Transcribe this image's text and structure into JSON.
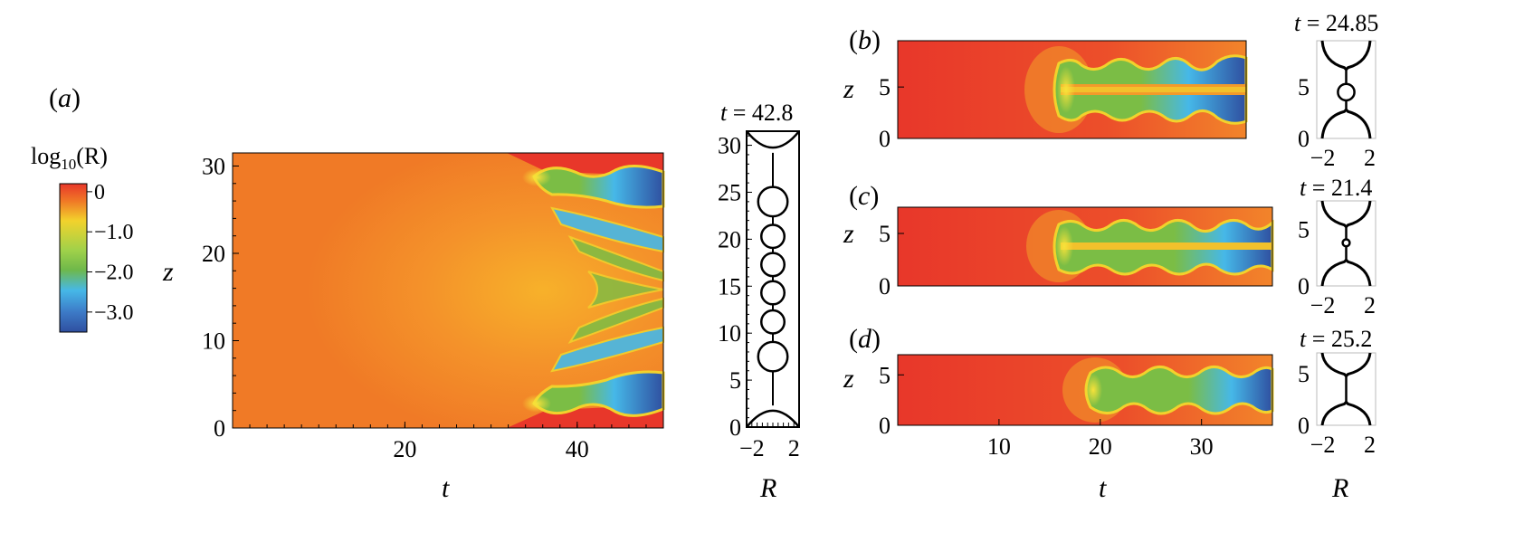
{
  "colors": {
    "red": "#e8372a",
    "orange": "#f07a26",
    "yellow": "#f2d22c",
    "green": "#7bbd45",
    "cyan": "#46b8e8",
    "blue": "#2f4fa0",
    "frame": "#000000"
  },
  "colorbar": {
    "label_main": "log",
    "label_sub": "10",
    "label_tail": "(R)",
    "ticks": [
      {
        "value": 0,
        "label": "0"
      },
      {
        "value": -1.0,
        "label": "−1.0"
      },
      {
        "value": -2.0,
        "label": "−2.0"
      },
      {
        "value": -3.0,
        "label": "−3.0"
      }
    ],
    "range": [
      -3.5,
      0.2
    ]
  },
  "chart_data": [
    {
      "panel": "(a)",
      "type": "heatmap",
      "title": "",
      "xlabel": "t",
      "ylabel": "z",
      "xlim": [
        0,
        50
      ],
      "ylim": [
        0,
        31.5
      ],
      "xticks": [
        20,
        40
      ],
      "yticks": [
        0,
        10,
        20,
        30
      ],
      "jet_onset_t": 35,
      "bulges_z": [
        3,
        28.5
      ],
      "series": [
        {
          "name": "",
          "values": [
            0
          ]
        }
      ]
    },
    {
      "panel": "(a) inset",
      "type": "line",
      "title": "t = 42.8",
      "xlabel": "R",
      "ylabel": "",
      "xlim": [
        -2.5,
        2.5
      ],
      "ylim": [
        0,
        31.5
      ],
      "xticks": [
        -2,
        2
      ],
      "xtick_labels": [
        "−2",
        "2"
      ],
      "yticks": [
        0,
        5,
        10,
        15,
        20,
        25,
        30
      ],
      "drop_centers_z": [
        7.5,
        11.2,
        14.3,
        17.3,
        20.3,
        24
      ],
      "drop_radii": [
        1.4,
        1.1,
        1.1,
        1.1,
        1.1,
        1.4
      ]
    },
    {
      "panel": "(b)",
      "type": "heatmap",
      "xlabel": "",
      "ylabel": "z",
      "xlim": [
        0,
        35
      ],
      "ylim": [
        0,
        9.5
      ],
      "yticks": [
        0,
        5
      ],
      "jet_onset_t": 16,
      "inset": {
        "title": "t = 24.85",
        "xlim": [
          -2.5,
          2.5
        ],
        "ylim": [
          0,
          9.5
        ],
        "xticks": [
          -2,
          2
        ],
        "xtick_labels": [
          "−2",
          "2"
        ],
        "yticks": [
          0,
          5
        ],
        "drop_center_z": 4.5,
        "drop_radius": 0.7
      }
    },
    {
      "panel": "(c)",
      "type": "heatmap",
      "xlabel": "",
      "ylabel": "z",
      "xlim": [
        0,
        37
      ],
      "ylim": [
        0,
        7.5
      ],
      "yticks": [
        0,
        5
      ],
      "jet_onset_t": 16,
      "inset": {
        "title": "t = 21.4",
        "xlim": [
          -2.5,
          2.5
        ],
        "ylim": [
          0,
          7.5
        ],
        "xticks": [
          -2,
          2
        ],
        "xtick_labels": [
          "−2",
          "2"
        ],
        "yticks": [
          0,
          5
        ],
        "drop_center_z": 3.8,
        "drop_radius": 0.3
      }
    },
    {
      "panel": "(d)",
      "type": "heatmap",
      "xlabel": "t",
      "ylabel": "z",
      "xlim": [
        0,
        37
      ],
      "ylim": [
        0,
        7
      ],
      "xticks": [
        10,
        20,
        30
      ],
      "yticks": [
        0,
        5
      ],
      "jet_onset_t": 19,
      "inset": {
        "title": "t = 25.2",
        "xlim": [
          -2.5,
          2.5
        ],
        "ylim": [
          0,
          7
        ],
        "xticks": [
          -2,
          2
        ],
        "xtick_labels": [
          "−2",
          "2"
        ],
        "yticks": [
          0,
          5
        ],
        "drop_center_z": null,
        "drop_radius": null
      },
      "bottom_inset_xlabel": "R"
    }
  ]
}
